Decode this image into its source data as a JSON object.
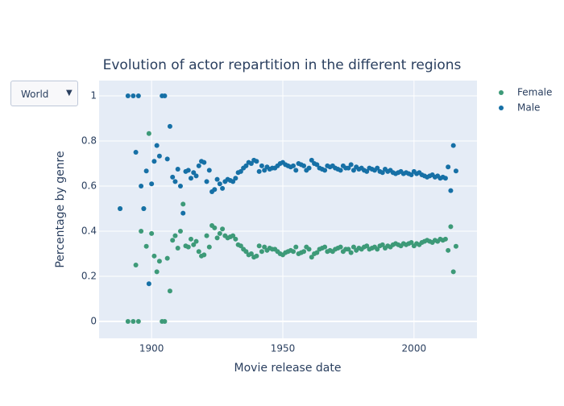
{
  "dropdown": {
    "selected": "World"
  },
  "chart_data": {
    "type": "scatter",
    "title": "Evolution of actor repartition in the different regions",
    "x_label": "Movie release date",
    "y_label": "Percentage by genre",
    "xlim": [
      1880,
      2024
    ],
    "ylim": [
      -0.075,
      1.068
    ],
    "xticks": [
      1900,
      1950,
      2000
    ],
    "yticks": [
      0,
      0.2,
      0.4,
      0.6,
      0.8,
      1
    ],
    "grid": true,
    "legend": "right",
    "x": [
      1888,
      1891,
      1893,
      1894,
      1895,
      1896,
      1897,
      1898,
      1899,
      1900,
      1901,
      1902,
      1903,
      1904,
      1905,
      1906,
      1907,
      1908,
      1909,
      1910,
      1911,
      1912,
      1913,
      1914,
      1915,
      1916,
      1917,
      1918,
      1919,
      1920,
      1921,
      1922,
      1923,
      1924,
      1925,
      1926,
      1927,
      1928,
      1929,
      1930,
      1931,
      1932,
      1933,
      1934,
      1935,
      1936,
      1937,
      1938,
      1939,
      1940,
      1941,
      1942,
      1943,
      1944,
      1945,
      1946,
      1947,
      1948,
      1949,
      1950,
      1951,
      1952,
      1953,
      1954,
      1955,
      1956,
      1957,
      1958,
      1959,
      1960,
      1961,
      1962,
      1963,
      1964,
      1965,
      1966,
      1967,
      1968,
      1969,
      1970,
      1971,
      1972,
      1973,
      1974,
      1975,
      1976,
      1977,
      1978,
      1979,
      1980,
      1981,
      1982,
      1983,
      1984,
      1985,
      1986,
      1987,
      1988,
      1989,
      1990,
      1991,
      1992,
      1993,
      1994,
      1995,
      1996,
      1997,
      1998,
      1999,
      2000,
      2001,
      2002,
      2003,
      2004,
      2005,
      2006,
      2007,
      2008,
      2009,
      2010,
      2011,
      2012,
      2013,
      2014,
      2015,
      2016
    ],
    "series": [
      {
        "name": "Female",
        "color": "#3d9a78",
        "values": [
          0.5,
          0,
          0,
          0.25,
          0,
          0.4,
          0.5,
          0.333,
          0.833,
          0.39,
          0.29,
          0.22,
          0.267,
          0,
          0,
          0.28,
          0.135,
          0.36,
          0.38,
          0.325,
          0.4,
          0.52,
          0.335,
          0.33,
          0.365,
          0.34,
          0.355,
          0.31,
          0.29,
          0.295,
          0.38,
          0.33,
          0.425,
          0.415,
          0.37,
          0.39,
          0.41,
          0.38,
          0.37,
          0.375,
          0.38,
          0.365,
          0.34,
          0.335,
          0.32,
          0.31,
          0.295,
          0.3,
          0.285,
          0.29,
          0.335,
          0.31,
          0.33,
          0.315,
          0.325,
          0.32,
          0.32,
          0.31,
          0.3,
          0.295,
          0.305,
          0.31,
          0.315,
          0.31,
          0.33,
          0.3,
          0.305,
          0.31,
          0.33,
          0.32,
          0.285,
          0.3,
          0.305,
          0.32,
          0.325,
          0.33,
          0.31,
          0.315,
          0.31,
          0.32,
          0.325,
          0.33,
          0.31,
          0.32,
          0.32,
          0.305,
          0.33,
          0.315,
          0.325,
          0.32,
          0.33,
          0.335,
          0.32,
          0.325,
          0.33,
          0.32,
          0.335,
          0.34,
          0.325,
          0.335,
          0.33,
          0.34,
          0.345,
          0.34,
          0.335,
          0.345,
          0.34,
          0.345,
          0.35,
          0.335,
          0.345,
          0.34,
          0.35,
          0.355,
          0.36,
          0.355,
          0.35,
          0.36,
          0.355,
          0.365,
          0.36,
          0.365,
          0.315,
          0.42,
          0.22,
          0.333
        ]
      },
      {
        "name": "Male",
        "color": "#1670a6",
        "values": [
          0.5,
          1,
          1,
          0.75,
          1,
          0.6,
          0.5,
          0.667,
          0.167,
          0.61,
          0.71,
          0.78,
          0.733,
          1,
          1,
          0.72,
          0.865,
          0.64,
          0.62,
          0.675,
          0.6,
          0.48,
          0.665,
          0.67,
          0.635,
          0.66,
          0.645,
          0.69,
          0.71,
          0.705,
          0.62,
          0.67,
          0.575,
          0.585,
          0.63,
          0.61,
          0.59,
          0.62,
          0.63,
          0.625,
          0.62,
          0.635,
          0.66,
          0.665,
          0.68,
          0.69,
          0.705,
          0.7,
          0.715,
          0.71,
          0.665,
          0.69,
          0.67,
          0.685,
          0.675,
          0.68,
          0.68,
          0.69,
          0.7,
          0.705,
          0.695,
          0.69,
          0.685,
          0.69,
          0.67,
          0.7,
          0.695,
          0.69,
          0.67,
          0.68,
          0.715,
          0.7,
          0.695,
          0.68,
          0.675,
          0.67,
          0.69,
          0.685,
          0.69,
          0.68,
          0.675,
          0.67,
          0.69,
          0.68,
          0.68,
          0.695,
          0.67,
          0.685,
          0.675,
          0.68,
          0.67,
          0.665,
          0.68,
          0.675,
          0.67,
          0.68,
          0.665,
          0.66,
          0.675,
          0.665,
          0.67,
          0.66,
          0.655,
          0.66,
          0.665,
          0.655,
          0.66,
          0.655,
          0.65,
          0.665,
          0.655,
          0.66,
          0.65,
          0.645,
          0.64,
          0.645,
          0.65,
          0.64,
          0.645,
          0.635,
          0.64,
          0.635,
          0.685,
          0.58,
          0.78,
          0.667
        ]
      }
    ]
  }
}
